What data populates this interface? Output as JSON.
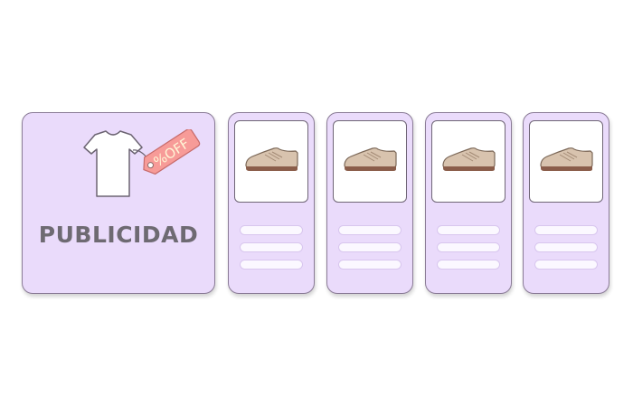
{
  "ad": {
    "label": "PUBLICIDAD",
    "tag_text": "%OFF",
    "colors": {
      "card": "#eadbfb",
      "tag": "#f79b98",
      "tag_text": "#fff6d6",
      "shirt": "#ffffff"
    }
  },
  "products": [
    {
      "image": "shoe-icon"
    },
    {
      "image": "shoe-icon"
    },
    {
      "image": "shoe-icon"
    },
    {
      "image": "shoe-icon"
    }
  ],
  "colors": {
    "card_border": "#8a7b96",
    "shoe_upper": "#d8c3ae",
    "shoe_sole": "#8a5d4a",
    "placeholder_line": "#fbf8ff"
  }
}
